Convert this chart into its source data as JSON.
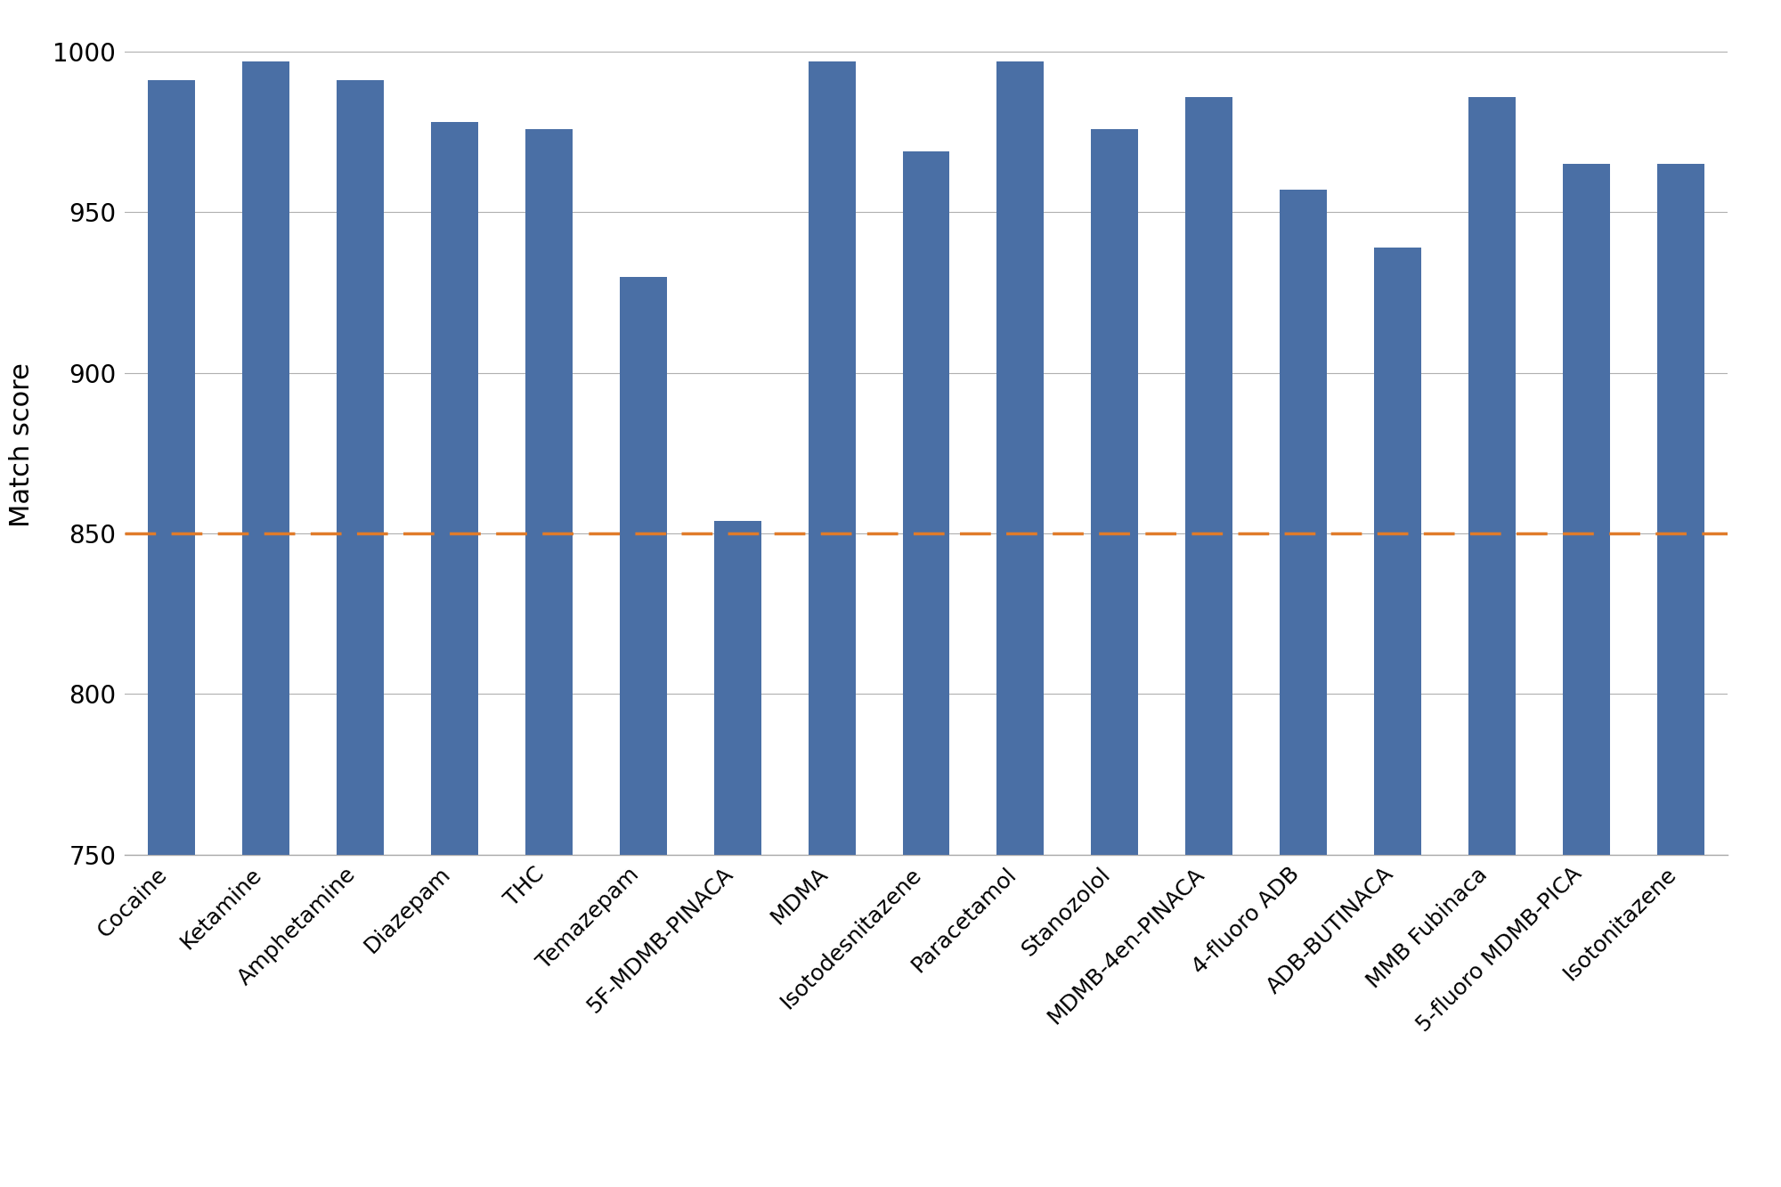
{
  "categories": [
    "Cocaine",
    "Ketamine",
    "Amphetamine",
    "Diazepam",
    "THC",
    "Temazepam",
    "5F-MDMB-PINACA",
    "MDMA",
    "Isotodesnitazene",
    "Paracetamol",
    "Stanozolol",
    "MDMB-4en-PINACA",
    "4-fluoro ADB",
    "ADB-BUTINACA",
    "MMB Fubinaca",
    "5-fluoro MDMB-PICA",
    "Isotonitazene"
  ],
  "values": [
    991,
    997,
    991,
    978,
    976,
    930,
    854,
    997,
    969,
    997,
    976,
    986,
    957,
    939,
    986,
    965,
    965
  ],
  "bar_color": "#4a6fa5",
  "threshold": 850,
  "threshold_color": "#e07b2a",
  "ylabel": "Match score",
  "ylim": [
    750,
    1005
  ],
  "yticks": [
    750,
    800,
    850,
    900,
    950,
    1000
  ],
  "background_color": "#ffffff",
  "grid_color": "#b0b0b0",
  "figsize": [
    20.0,
    13.33
  ]
}
